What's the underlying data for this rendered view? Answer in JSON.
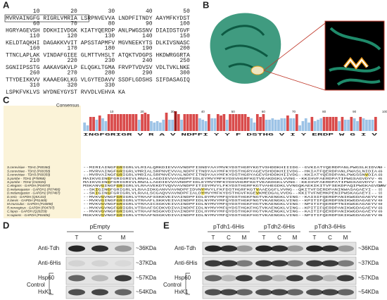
{
  "panel_a": {
    "label": "A",
    "rows": [
      {
        "numbers": [
          "10",
          "20",
          "30",
          "40",
          "50"
        ],
        "seq": "MVRVAINGFG RIGRLVMRIA LSRPNVEVVA LNDPFITNDY AAYMFKYDST"
      },
      {
        "numbers": [
          "60",
          "70",
          "80",
          "90",
          "100"
        ],
        "seq": "HGRYAGEVSH DDKHIIVDGK KIATYQERDP ANLPWGSSNV DIAIDSTGVF"
      },
      {
        "numbers": [
          "110",
          "120",
          "130",
          "140",
          "150"
        ],
        "seq": "KELDTAQKHI DAGAKKVVIT APSSTAPMFV MGVNEEKYTS DLKIVSNASC"
      },
      {
        "numbers": [
          "160",
          "170",
          "180",
          "190",
          "200"
        ],
        "seq": "TTNCLAPLAK VINDAFGIEE GLMTTVHSLT ATQKTVDGPS HKDWRGGRTA"
      },
      {
        "numbers": [
          "210",
          "220",
          "230",
          "240",
          "250"
        ],
        "seq": "SGNIIPSSTG AAKAVGKVLP ELQGKLTGMA FRVPTVDVSV VDLTVKLNKE"
      },
      {
        "numbers": [
          "260",
          "270",
          "280",
          "290",
          "300"
        ],
        "seq": "TTYDEIKKVV KAAAEGKLKG VLGYTEDAVV SSDFLGDSHS SIFDASAGIQ"
      },
      {
        "numbers": [
          "310",
          "320",
          "330"
        ],
        "seq": "LSPKFVKLVS WYDNEYGYST RVVDLVEHVA KA"
      }
    ]
  },
  "panel_b": {
    "label": "B"
  },
  "panel_c": {
    "label": "C",
    "consensus_label": "Consensus",
    "consensus": "    INGFGRIGR V R A       V  NDPFI  Y  Y   F DSTHG       V             I  Y  ERDP   W G   I  V   ",
    "positions": [
      "10",
      "20",
      "30",
      "40",
      "50",
      "60",
      "70",
      "80",
      "90",
      "100"
    ],
    "rows": [
      {
        "name": "S.cerevisiae - TDH1 (P00360)",
        "seq": "--MIRIAINGFGRIGRLVLRIALQRKDIEVVAVNDPFISNDYAAYMVKYDSTHGRYKGTVSHDDKHIIIDG--GVKIATYQERDPANLPWGSLKIDVA--",
        "end": "93"
      },
      {
        "name": "S.cerevisiae - TDH2 (P00358)",
        "seq": "--MVRVAINGFGRIGRLVMRIALSRPNVEVVALNDPFITNDYAAYMFKYDSTHGRYAGEVSHDDKHIIVDG--HKIATFQERDPANLPWASLNIDIA--",
        "end": "93"
      },
      {
        "name": "S.cerevisiae - TDH3 (P00359)",
        "seq": "--MVRVAINGFGRIGRLVMRIALSRPNVEVVALNDPFITNDYAAYMFKYDSTHGRYAGEVSHDDKHIIVDG--KKIATYQERDPANLPWGSSNVDIA--",
        "end": "93"
      },
      {
        "name": "S.pombe - TDH1 (P78958)",
        "seq": "MAIKVGINGFGRIGRIVLRNALLAGDIEVVAVNDPFIDLEYMVYMFKYDSVHGRFKGTVEAKDGKLVVNG--KKIHVFAERDPATIPWGSAGVDYV--",
        "end": "95"
      },
      {
        "name": "S.pombe - TDH2 (O43026)",
        "seq": "MAIKVGINGFGRIGRIVLRNALLAGDIEVVAVNDPFIDLEYMVYMFKYDSVHGRFKGTVEAKDGKLVVNG--KKIHVFAERDPATIPWGSAGVDYV--",
        "end": "95"
      },
      {
        "name": "C.elegans - GAPDH (P04970)",
        "seq": "MSKANVGINGFGRIGRLVLRAAVEKDTVQVVAVNDPFITIDYMVYLFKYDSTHGRFKGTVAHEGDKLVVNGQKAEKIKITVFSEKDPAQIPWGKAGVDAV",
        "end": "100"
      },
      {
        "name": "D.melanogaster - GAPDH1 (P07486)",
        "seq": "--SKIGINGFGRIGRLVLRAAIDKGANVVAVNDPFIDVNYMVYLFKFDSTHGRFKGTVAAEGGFLVVNG--QKITVFSERDPANINWASAGAEYI--",
        "end": "93"
      },
      {
        "name": "D.melanogaster - GAPDH2 (P07487)",
        "seq": "--SKIGINGFGRIGRLVLRAALSCGAQVVAVNDPFIALDYMVYMFKYDSTHGVFKGEVKMEDGALVVDG--KKITVFNEMKPENIPWSKAGAEYI--",
        "end": "93"
      },
      {
        "name": "D.rerio - GAPDH (Q5XJ10)",
        "seq": "--MVKVGVNGFGRIGRLVTRAAFSSKKVEIVAINDPFIDLDYMVYMFQYDSTHGKFNGTVKAENGKLVING--KAISIFQERDPANIKWGDAGAEYV--",
        "end": "93"
      },
      {
        "name": "X.laevis - GAPDH (P51469)",
        "seq": "--MVKVGINGFGRIGRLVTRAAFLSKKVEIVAINDPFIDLNYMVYMFQYDSTHGKFNGTVKAENGKLVING--KPITIFQERDPSNIKWGDAGAEYV--",
        "end": "93"
      },
      {
        "name": "M.musculus - GAPDH (P16858)",
        "seq": "--MVKVGVNGFGRIGRLVTRAAICSGKVEIVAINDPFIDLNYMVYMFQYDSTHGKFHGTVKAENGKLVING--NPITIFQERDPTNIKWGEAGAEYV--",
        "end": "93"
      },
      {
        "name": "R.norvegicus - GAPDH (P04797)",
        "seq": "--MVKVGVNGFGRIGRLVTRAAFSCDKVDIVAINDPFIDLNYMVYMFQYDSTHGKFHGTVKAENGKLVING--KPITIFQERDPANIKWGDAGAEYV--",
        "end": "93"
      },
      {
        "name": "C.lupus - GAPDH (Q28259)",
        "seq": "--MVKVGVNGFGRIGRLVTRAAFNSGKVDIVAINDPFIDLHYMVYMFQYDSTHGKFHGTVKAENGKLVING--KAITIFQERDPANIKWGDAGAEYV--",
        "end": "93"
      },
      {
        "name": "H.sapiens - GAPDH (P04406)",
        "seq": "MGKVKVGVNGFGRIGRLVTRAAFNSGKVDIVAINDPFIDLNYMVYMFQYDSTHGKFHGTVKAENGKLVING--NPITIFQERDPSKIKWGDAGAEYV--",
        "end": "95"
      }
    ]
  },
  "panel_d": {
    "label": "D",
    "header": "pEmpty",
    "lanes": [
      "T",
      "C",
      "M"
    ],
    "rows": [
      "Anti-Tdh",
      "Anti-6His",
      "Hsp60",
      "HxK1"
    ],
    "group": "Control",
    "sizes": [
      "~36KDa",
      "~37KDa",
      "~57KDa",
      "~54KDa"
    ]
  },
  "panel_e": {
    "label": "E",
    "headers": [
      "pTdh1-6His",
      "pTdh2-6His",
      "pTdh3-6His"
    ],
    "lanes": [
      "T",
      "C",
      "M",
      "T",
      "C",
      "M",
      "T",
      "C",
      "M"
    ],
    "rows": [
      "Anti-Tdh",
      "Anti-6His",
      "Hsp60",
      "HxK1"
    ],
    "group": "Control",
    "sizes": [
      "~36KDa",
      "~37KDa",
      "~57KDa",
      "~54KDa"
    ]
  }
}
